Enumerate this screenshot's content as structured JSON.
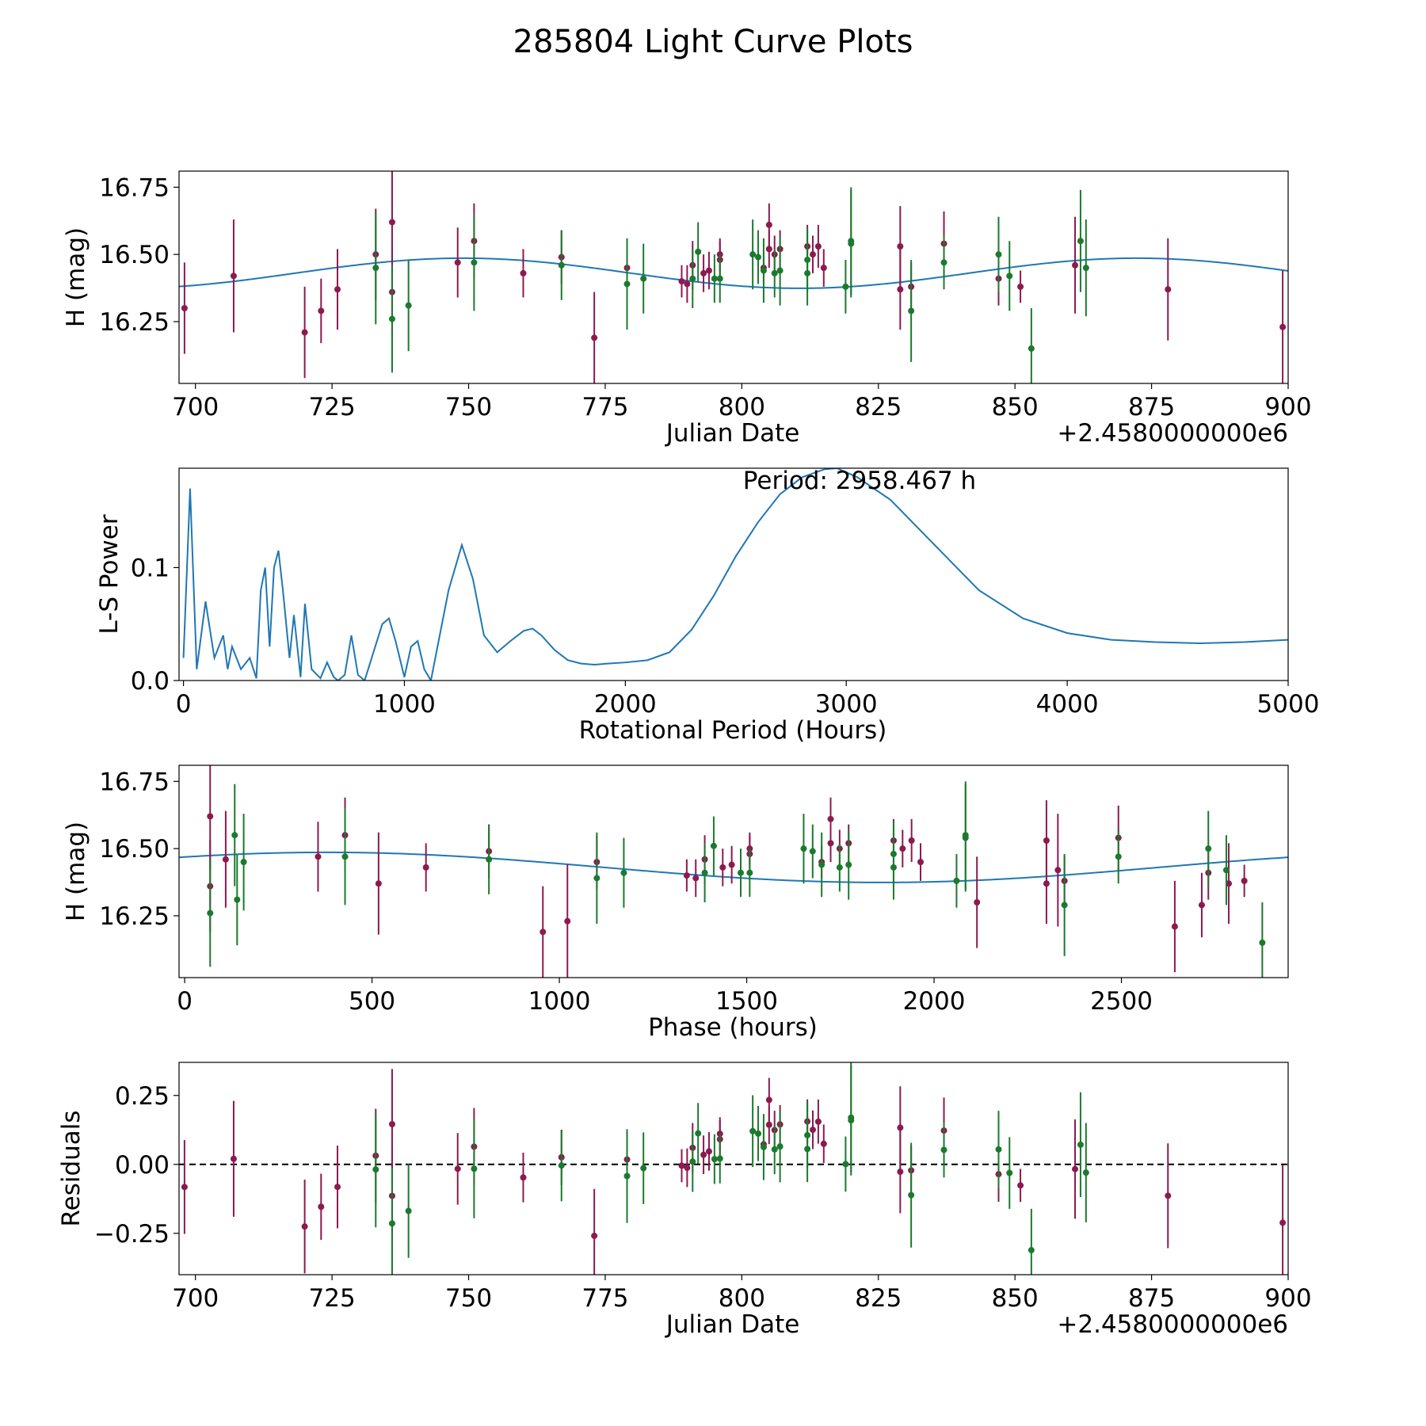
{
  "figure": {
    "title": "285804 Light Curve Plots"
  },
  "colors": {
    "curve": "#1f77b4",
    "series_a": "#8c1a4f",
    "series_b": "#1b7a2e",
    "zero_line": "#000000"
  },
  "chart_data": [
    {
      "id": "lightcurve",
      "type": "scatter",
      "title": "",
      "xlabel": "Julian Date",
      "ylabel": "H (mag)",
      "offset_text": "+2.4580000000e6",
      "xlim": [
        697,
        900
      ],
      "ylim": [
        16.02,
        16.81
      ],
      "xticks": [
        700,
        725,
        750,
        775,
        800,
        825,
        850,
        875,
        900
      ],
      "yticks": [
        16.25,
        16.5,
        16.75
      ],
      "ytick_labels": [
        "16.25",
        "16.50",
        "16.75"
      ],
      "fit": {
        "type": "sinusoid",
        "mean": 16.43,
        "amplitude": 0.056,
        "period_days": 123.27,
        "peak_x": 749
      },
      "series": [
        {
          "name": "series_a",
          "x": [
            698,
            707,
            720,
            723,
            726,
            733,
            736,
            736,
            748,
            751,
            760,
            767,
            773,
            779,
            789,
            790,
            791,
            793,
            794,
            796,
            796,
            804,
            805,
            805,
            806,
            807,
            812,
            813,
            814,
            815,
            829,
            829,
            831,
            837,
            847,
            851,
            861,
            878,
            899
          ],
          "y": [
            16.3,
            16.42,
            16.21,
            16.29,
            16.37,
            16.5,
            16.62,
            16.36,
            16.47,
            16.55,
            16.43,
            16.49,
            16.19,
            16.45,
            16.4,
            16.39,
            16.46,
            16.43,
            16.44,
            16.5,
            16.48,
            16.45,
            16.61,
            16.52,
            16.5,
            16.52,
            16.53,
            16.5,
            16.53,
            16.45,
            16.53,
            16.37,
            16.38,
            16.54,
            16.41,
            16.38,
            16.46,
            16.37,
            16.23
          ],
          "err": [
            0.17,
            0.21,
            0.17,
            0.12,
            0.15,
            0.17,
            0.2,
            0.17,
            0.13,
            0.14,
            0.09,
            0.1,
            0.17,
            0.1,
            0.06,
            0.07,
            0.09,
            0.07,
            0.07,
            0.06,
            0.07,
            0.06,
            0.08,
            0.07,
            0.07,
            0.07,
            0.08,
            0.07,
            0.08,
            0.07,
            0.15,
            0.15,
            0.09,
            0.12,
            0.1,
            0.06,
            0.18,
            0.19,
            0.21
          ]
        },
        {
          "name": "series_b",
          "x": [
            733,
            736,
            739,
            751,
            767,
            779,
            782,
            791,
            792,
            795,
            796,
            802,
            803,
            804,
            806,
            807,
            812,
            812,
            819,
            820,
            820,
            831,
            837,
            847,
            849,
            853,
            862,
            863
          ],
          "y": [
            16.45,
            16.26,
            16.31,
            16.47,
            16.46,
            16.39,
            16.41,
            16.41,
            16.51,
            16.41,
            16.41,
            16.5,
            16.49,
            16.44,
            16.43,
            16.44,
            16.43,
            16.48,
            16.38,
            16.54,
            16.55,
            16.29,
            16.47,
            16.5,
            16.42,
            16.15,
            16.55,
            16.45
          ],
          "err": [
            0.21,
            0.2,
            0.17,
            0.18,
            0.13,
            0.17,
            0.13,
            0.11,
            0.11,
            0.09,
            0.09,
            0.13,
            0.1,
            0.12,
            0.09,
            0.13,
            0.12,
            0.12,
            0.1,
            0.2,
            0.2,
            0.19,
            0.1,
            0.14,
            0.13,
            0.15,
            0.19,
            0.18
          ]
        }
      ]
    },
    {
      "id": "periodogram",
      "type": "line",
      "xlabel": "Rotational Period (Hours)",
      "ylabel": "L-S Power",
      "annotation": "Period: 2958.467 h",
      "xlim": [
        -20,
        5000
      ],
      "ylim": [
        0,
        0.188
      ],
      "xticks": [
        0,
        1000,
        2000,
        3000,
        4000,
        5000
      ],
      "xtick_labels": [
        "0",
        "1000",
        "2000",
        "3000",
        "4000",
        "5000"
      ],
      "yticks": [
        0,
        0.1
      ],
      "ytick_labels": [
        "0.0",
        "0.1"
      ],
      "x": [
        0,
        30,
        60,
        100,
        140,
        180,
        200,
        220,
        260,
        300,
        330,
        350,
        370,
        390,
        410,
        430,
        450,
        480,
        500,
        530,
        550,
        580,
        620,
        650,
        680,
        700,
        730,
        760,
        790,
        820,
        860,
        900,
        930,
        960,
        1000,
        1030,
        1060,
        1090,
        1120,
        1150,
        1200,
        1260,
        1310,
        1360,
        1420,
        1480,
        1540,
        1580,
        1620,
        1680,
        1740,
        1800,
        1860,
        1920,
        2000,
        2100,
        2200,
        2300,
        2400,
        2500,
        2600,
        2700,
        2800,
        2900,
        2958,
        3050,
        3200,
        3400,
        3600,
        3800,
        4000,
        4200,
        4400,
        4600,
        4800,
        5000
      ],
      "y": [
        0.02,
        0.17,
        0.01,
        0.07,
        0.02,
        0.04,
        0.01,
        0.03,
        0.01,
        0.02,
        0.002,
        0.08,
        0.1,
        0.03,
        0.1,
        0.115,
        0.08,
        0.02,
        0.058,
        0.003,
        0.068,
        0.01,
        0.002,
        0.016,
        0.003,
        0.0,
        0.005,
        0.04,
        0.005,
        0.0,
        0.025,
        0.05,
        0.055,
        0.035,
        0.003,
        0.03,
        0.035,
        0.01,
        0.0,
        0.03,
        0.08,
        0.12,
        0.09,
        0.04,
        0.025,
        0.035,
        0.044,
        0.046,
        0.04,
        0.027,
        0.018,
        0.015,
        0.014,
        0.015,
        0.016,
        0.018,
        0.025,
        0.045,
        0.075,
        0.11,
        0.14,
        0.165,
        0.18,
        0.187,
        0.188,
        0.18,
        0.16,
        0.12,
        0.08,
        0.055,
        0.042,
        0.036,
        0.034,
        0.033,
        0.034,
        0.036
      ]
    },
    {
      "id": "phased",
      "type": "scatter",
      "xlabel": "Phase (hours)",
      "ylabel": "H (mag)",
      "xlim": [
        -15,
        2945
      ],
      "ylim": [
        16.02,
        16.81
      ],
      "xticks": [
        0,
        500,
        1000,
        1500,
        2000,
        2500
      ],
      "yticks": [
        16.25,
        16.5,
        16.75
      ],
      "ytick_labels": [
        "16.25",
        "16.50",
        "16.75"
      ],
      "fit": {
        "type": "sinusoid",
        "mean": 16.43,
        "amplitude": 0.056,
        "period_hours": 2958.467,
        "peak_x": 380
      }
    },
    {
      "id": "residuals",
      "type": "scatter",
      "xlabel": "Julian Date",
      "ylabel": "Residuals",
      "offset_text": "+2.4580000000e6",
      "xlim": [
        697,
        900
      ],
      "ylim": [
        -0.4,
        0.37
      ],
      "xticks": [
        700,
        725,
        750,
        775,
        800,
        825,
        850,
        875,
        900
      ],
      "yticks": [
        -0.25,
        0,
        0.25
      ],
      "ytick_labels": [
        "−0.25",
        "0.00",
        "0.25"
      ],
      "reference_line": 0
    }
  ]
}
